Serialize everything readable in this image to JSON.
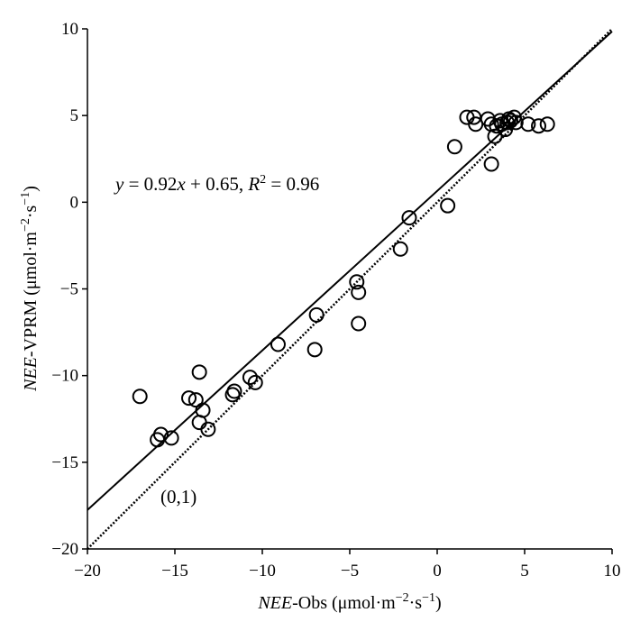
{
  "chart_data": {
    "type": "scatter",
    "x_axis": {
      "label_italic": "NEE",
      "label_rest": "-Obs",
      "unit_open": "(μmol·m",
      "unit_exp1": "−2",
      "unit_mid": "·s",
      "unit_exp2": "−1",
      "unit_close": ")",
      "range": [
        -20,
        10
      ],
      "ticks": [
        -20,
        -15,
        -10,
        -5,
        0,
        5,
        10
      ],
      "tick_labels": [
        "−20",
        "−15",
        "−10",
        "−5",
        "0",
        "5",
        "10"
      ]
    },
    "y_axis": {
      "label_italic": "NEE",
      "label_rest": "-VPRM",
      "unit_open": "(μmol·m",
      "unit_exp1": "−2",
      "unit_mid": "·s",
      "unit_exp2": "−1",
      "unit_close": ")",
      "range": [
        -20,
        10
      ],
      "ticks": [
        -20,
        -15,
        -10,
        -5,
        0,
        5,
        10
      ],
      "tick_labels": [
        "−20",
        "−15",
        "−10",
        "−5",
        "0",
        "5",
        "10"
      ]
    },
    "regression": {
      "slope": 0.92,
      "intercept": 0.65,
      "eq_y": "y",
      "eq_mid": " = 0.92",
      "eq_x": "x",
      "eq_tail": " + 0.65, ",
      "eq_r": "R",
      "eq_r_exp": "2",
      "eq_r_val": " = 0.96"
    },
    "reference_line": {
      "slope": 1,
      "intercept": 0,
      "label": "(0,1)"
    },
    "points": [
      [
        -17.0,
        -11.2
      ],
      [
        -16.0,
        -13.7
      ],
      [
        -15.8,
        -13.4
      ],
      [
        -15.2,
        -13.6
      ],
      [
        -14.2,
        -11.3
      ],
      [
        -13.8,
        -11.4
      ],
      [
        -13.6,
        -9.8
      ],
      [
        -13.6,
        -12.7
      ],
      [
        -13.4,
        -12.0
      ],
      [
        -13.1,
        -13.1
      ],
      [
        -11.7,
        -11.1
      ],
      [
        -11.6,
        -10.9
      ],
      [
        -10.7,
        -10.1
      ],
      [
        -10.4,
        -10.4
      ],
      [
        -9.1,
        -8.2
      ],
      [
        -7.0,
        -8.5
      ],
      [
        -6.9,
        -6.5
      ],
      [
        -4.6,
        -4.6
      ],
      [
        -4.5,
        -5.2
      ],
      [
        -4.5,
        -7.0
      ],
      [
        -2.1,
        -2.7
      ],
      [
        -1.6,
        -0.9
      ],
      [
        0.6,
        -0.2
      ],
      [
        1.0,
        3.2
      ],
      [
        1.7,
        4.9
      ],
      [
        2.1,
        4.9
      ],
      [
        2.2,
        4.5
      ],
      [
        2.9,
        4.8
      ],
      [
        3.1,
        4.5
      ],
      [
        3.1,
        2.2
      ],
      [
        3.3,
        3.8
      ],
      [
        3.4,
        4.4
      ],
      [
        3.6,
        4.7
      ],
      [
        3.7,
        4.5
      ],
      [
        3.9,
        4.2
      ],
      [
        4.0,
        4.6
      ],
      [
        4.1,
        4.8
      ],
      [
        4.2,
        4.7
      ],
      [
        4.4,
        4.9
      ],
      [
        4.5,
        4.6
      ],
      [
        5.2,
        4.5
      ],
      [
        5.8,
        4.4
      ],
      [
        6.3,
        4.5
      ]
    ]
  }
}
